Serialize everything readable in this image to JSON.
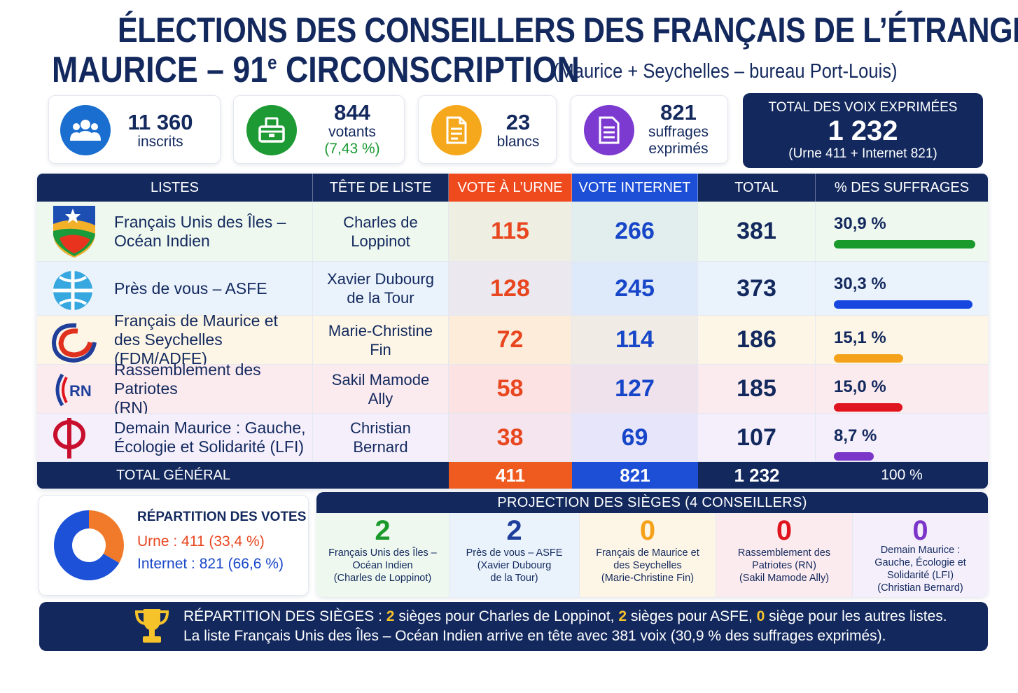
{
  "header": {
    "title_line1": "ÉLECTIONS DES CONSEILLERS DES FRANÇAIS DE L’ÉTRANGER",
    "title_line2_main": "MAURICE – 91",
    "title_line2_sup": "e",
    "title_line2_rest": " CIRCONSCRIPTION",
    "title_sub": "(Maurice + Seychelles – bureau Port-Louis)"
  },
  "stats": {
    "inscrits_value": "11 360",
    "inscrits_label": "inscrits",
    "votants_value": "844",
    "votants_label": "votants",
    "votants_pct": "(7,43 %)",
    "blancs_value": "23",
    "blancs_label": "blancs",
    "exprimes_value": "821",
    "exprimes_label1": "suffrages",
    "exprimes_label2": "exprimés",
    "total_label": "TOTAL DES VOIX EXPRIMÉES",
    "total_value": "1 232",
    "total_sub": "(Urne 411 + Internet 821)"
  },
  "table": {
    "headers": [
      "LISTES",
      "TÊTE DE LISTE",
      "VOTE À L’URNE",
      "VOTE INTERNET",
      "TOTAL",
      "% DES SUFFRAGES"
    ],
    "rows": [
      {
        "list_line1": "Français Unis des Îles –",
        "list_line2": "Océan Indien",
        "head_line1": "Charles de",
        "head_line2": "Loppinot",
        "urne": "115",
        "internet": "266",
        "total": "381",
        "pct_label": "30,9 %"
      },
      {
        "list_line1": "Près de vous – ASFE",
        "list_line2": "",
        "head_line1": "Xavier Dubourg",
        "head_line2": "de la Tour",
        "urne": "128",
        "internet": "245",
        "total": "373",
        "pct_label": "30,3 %"
      },
      {
        "list_line1": "Français de Maurice et",
        "list_line2": "des Seychelles (FDM/ADFE)",
        "head_line1": "Marie-Christine",
        "head_line2": "Fin",
        "urne": "72",
        "internet": "114",
        "total": "186",
        "pct_label": "15,1 %"
      },
      {
        "list_line1": "Rassemblement des Patriotes",
        "list_line2": "(RN)",
        "head_line1": "Sakil Mamode",
        "head_line2": "Ally",
        "urne": "58",
        "internet": "127",
        "total": "185",
        "pct_label": "15,0 %"
      },
      {
        "list_line1": "Demain Maurice : Gauche,",
        "list_line2": "Écologie et Solidarité (LFI)",
        "head_line1": "Christian",
        "head_line2": "Bernard",
        "urne": "38",
        "internet": "69",
        "total": "107",
        "pct_label": "8,7 %"
      }
    ],
    "rn_logo_text": "RN",
    "footer": {
      "label": "TOTAL GÉNÉRAL",
      "urne": "411",
      "internet": "821",
      "total": "1 232",
      "pct": "100 %"
    }
  },
  "donut": {
    "title": "RÉPARTITION DES VOTES",
    "urne_label": "Urne : 411 (33,4 %)",
    "internet_label": "Internet : 821 (66,6 %)"
  },
  "projection": {
    "title": "PROJECTION DES SIÈGES (4 CONSEILLERS)",
    "seats": [
      {
        "value": "2",
        "lines": [
          "Français Unis des Îles –",
          "Océan Indien",
          "(Charles de Loppinot)"
        ]
      },
      {
        "value": "2",
        "lines": [
          "Près de vous – ASFE",
          "(Xavier Dubourg",
          "de la Tour)"
        ]
      },
      {
        "value": "0",
        "lines": [
          "Français de Maurice et",
          "des Seychelles",
          "(Marie-Christine Fin)"
        ]
      },
      {
        "value": "0",
        "lines": [
          "Rassemblement des",
          "Patriotes (RN)",
          "(Sakil Mamode Ally)"
        ]
      },
      {
        "value": "0",
        "lines": [
          "Demain Maurice :",
          "Gauche, Écologie et",
          "Solidarité (LFI)",
          "(Christian Bernard)"
        ]
      }
    ]
  },
  "banner": {
    "l1_a": "RÉPARTITION DES SIÈGES : ",
    "l1_b": "2",
    "l1_c": " sièges pour Charles de Loppinot, ",
    "l1_d": "2",
    "l1_e": " sièges pour ASFE, ",
    "l1_f": "0",
    "l1_g": " siège pour les autres listes.",
    "line2": "La liste Français Unis des Îles – Océan Indien arrive en tête avec 381 voix (30,9 % des suffrages exprimés)."
  },
  "colors": {
    "navy": "#13295e",
    "urne": "#e8461f",
    "internet": "#1746c9",
    "bar_colors": [
      "#1a9a2a",
      "#1746e0",
      "#f5a21b",
      "#e0141e",
      "#7b35c8"
    ],
    "row_bg": [
      "#eef8ee",
      "#eaf3fc",
      "#fdf6e6",
      "#fcebee",
      "#f4effb"
    ]
  },
  "chart_data": [
    {
      "type": "table",
      "columns": [
        "LISTES",
        "TÊTE DE LISTE",
        "VOTE À L’URNE",
        "VOTE INTERNET",
        "TOTAL",
        "% DES SUFFRAGES"
      ],
      "categories": [
        "Français Unis des Îles – Océan Indien",
        "Près de vous – ASFE",
        "Français de Maurice et des Seychelles (FDM/ADFE)",
        "Rassemblement des Patriotes (RN)",
        "Demain Maurice : Gauche, Écologie et Solidarité (LFI)"
      ],
      "series": [
        {
          "name": "VOTE À L’URNE",
          "values": [
            115,
            128,
            72,
            58,
            38
          ]
        },
        {
          "name": "VOTE INTERNET",
          "values": [
            266,
            245,
            114,
            127,
            69
          ]
        },
        {
          "name": "TOTAL",
          "values": [
            381,
            373,
            186,
            185,
            107
          ]
        },
        {
          "name": "% DES SUFFRAGES",
          "values": [
            30.9,
            30.3,
            15.1,
            15.0,
            8.7
          ]
        }
      ],
      "totals": {
        "VOTE À L’URNE": 411,
        "VOTE INTERNET": 821,
        "TOTAL": 1232,
        "% DES SUFFRAGES": 100
      }
    },
    {
      "type": "pie",
      "title": "RÉPARTITION DES VOTES",
      "categories": [
        "Urne",
        "Internet"
      ],
      "values": [
        411,
        821
      ],
      "colors": [
        "#f07a2a",
        "#1d52d8"
      ]
    }
  ]
}
